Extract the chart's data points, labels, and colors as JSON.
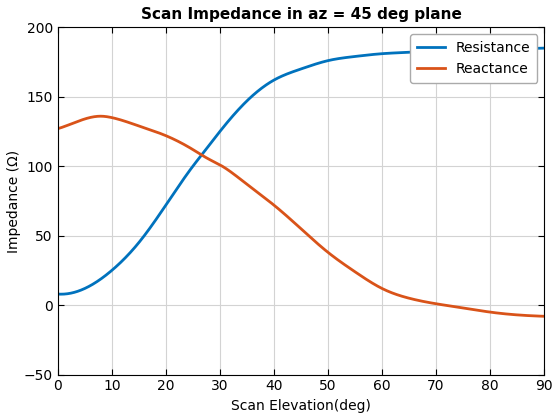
{
  "title": "Scan Impedance in az = 45 deg plane",
  "xlabel": "Scan Elevation(deg)",
  "ylabel": "Impedance (Ω)",
  "xlim": [
    0,
    90
  ],
  "ylim": [
    -50,
    200
  ],
  "xticks": [
    0,
    10,
    20,
    30,
    40,
    50,
    60,
    70,
    80,
    90
  ],
  "yticks": [
    -50,
    0,
    50,
    100,
    150,
    200
  ],
  "resistance_color": "#0072BD",
  "reactance_color": "#D95319",
  "legend_labels": [
    "Resistance",
    "Reactance"
  ],
  "line_width": 2.0,
  "background_color": "#FFFFFF",
  "grid_color": "#D3D3D3",
  "resistance_points": {
    "x": [
      0,
      5,
      10,
      15,
      20,
      25,
      27,
      30,
      35,
      40,
      45,
      50,
      55,
      60,
      65,
      70,
      75,
      80,
      85,
      90
    ],
    "y": [
      8,
      12,
      25,
      45,
      72,
      100,
      110,
      125,
      147,
      162,
      170,
      176,
      179,
      181,
      182,
      183,
      183.5,
      184,
      184.5,
      185
    ]
  },
  "reactance_points": {
    "x": [
      0,
      5,
      8,
      10,
      15,
      20,
      25,
      28,
      30,
      35,
      40,
      45,
      50,
      55,
      60,
      65,
      70,
      75,
      80,
      85,
      90
    ],
    "y": [
      127,
      134,
      136,
      135,
      129,
      122,
      112,
      105,
      101,
      87,
      72,
      55,
      38,
      24,
      12,
      5,
      1,
      -2,
      -5,
      -7,
      -8
    ]
  },
  "figsize": [
    5.6,
    4.2
  ],
  "dpi": 100,
  "title_fontsize": 11,
  "label_fontsize": 10,
  "tick_fontsize": 10,
  "legend_fontsize": 10
}
